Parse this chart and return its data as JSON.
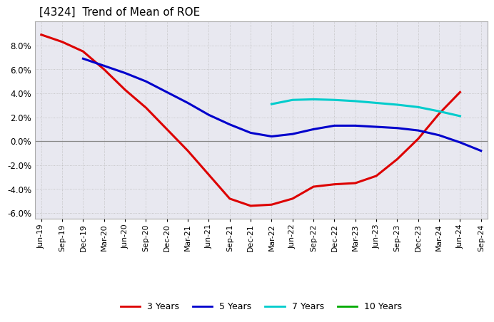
{
  "title": "[4324]  Trend of Mean of ROE",
  "x_labels": [
    "Jun-19",
    "Sep-19",
    "Dec-19",
    "Mar-20",
    "Jun-20",
    "Sep-20",
    "Dec-20",
    "Mar-21",
    "Jun-21",
    "Sep-21",
    "Dec-21",
    "Mar-22",
    "Jun-22",
    "Sep-22",
    "Dec-22",
    "Mar-23",
    "Jun-23",
    "Sep-23",
    "Dec-23",
    "Mar-24",
    "Jun-24",
    "Sep-24"
  ],
  "series_3yr": {
    "color": "#dd0000",
    "x_indices": [
      0,
      1,
      2,
      3,
      4,
      5,
      6,
      7,
      8,
      9,
      10,
      11,
      12,
      13,
      14,
      15,
      16,
      17,
      18,
      19,
      20
    ],
    "values": [
      8.9,
      8.3,
      7.5,
      6.0,
      4.3,
      2.8,
      1.0,
      -0.8,
      -2.8,
      -4.8,
      -5.4,
      -5.3,
      -4.8,
      -3.8,
      -3.6,
      -3.5,
      -2.9,
      -1.5,
      0.2,
      2.3,
      4.1
    ]
  },
  "series_5yr": {
    "color": "#0000cc",
    "x_indices": [
      2,
      3,
      4,
      5,
      6,
      7,
      8,
      9,
      10,
      11,
      12,
      13,
      14,
      15,
      16,
      17,
      18,
      19,
      20,
      21
    ],
    "values": [
      6.9,
      6.3,
      5.7,
      5.0,
      4.1,
      3.2,
      2.2,
      1.4,
      0.7,
      0.4,
      0.6,
      1.0,
      1.3,
      1.3,
      1.2,
      1.1,
      0.9,
      0.5,
      -0.1,
      -0.8
    ]
  },
  "series_7yr": {
    "color": "#00cccc",
    "x_indices": [
      11,
      12,
      13,
      14,
      15,
      16,
      17,
      18,
      19,
      20
    ],
    "values": [
      3.1,
      3.45,
      3.5,
      3.45,
      3.35,
      3.2,
      3.05,
      2.85,
      2.5,
      2.1
    ]
  },
  "series_10yr": {
    "color": "#00aa00",
    "x_indices": [],
    "values": []
  },
  "ylim": [
    -6.5,
    10.0
  ],
  "yticks": [
    -6.0,
    -4.0,
    -2.0,
    0.0,
    2.0,
    4.0,
    6.0,
    8.0
  ],
  "background_color": "#ffffff",
  "plot_bg_color": "#e8e8f0",
  "grid_color": "#bbbbbb",
  "legend_items": [
    "3 Years",
    "5 Years",
    "7 Years",
    "10 Years"
  ],
  "legend_colors": [
    "#dd0000",
    "#0000cc",
    "#00cccc",
    "#00aa00"
  ]
}
